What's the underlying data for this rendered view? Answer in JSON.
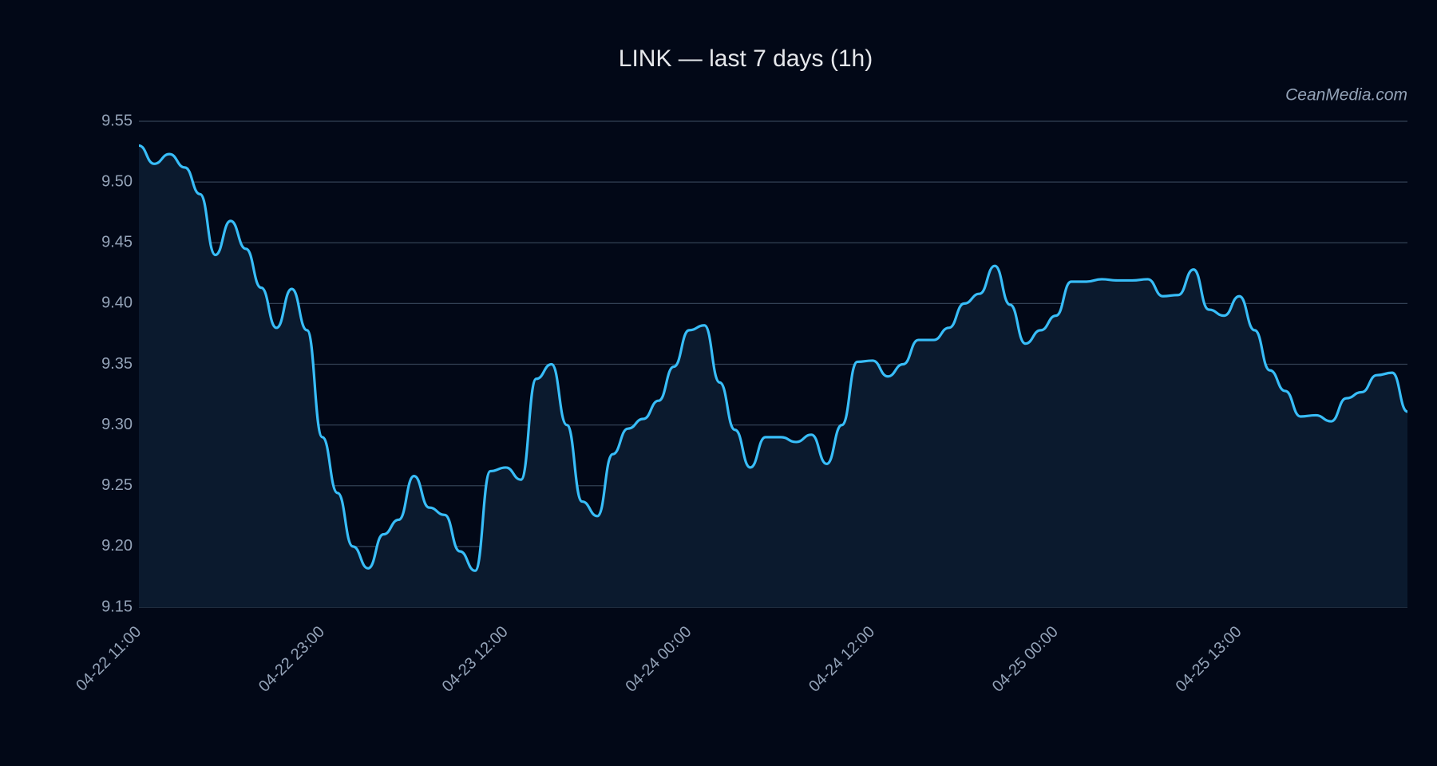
{
  "chart_data": {
    "type": "line",
    "title": "LINK — last 7 days (1h)",
    "watermark": "CeanMedia.com",
    "categories": [
      "04-22 11:00",
      null,
      null,
      null,
      null,
      null,
      null,
      null,
      null,
      null,
      null,
      null,
      "04-22 23:00",
      null,
      null,
      null,
      null,
      null,
      null,
      null,
      null,
      null,
      null,
      null,
      "04-23 12:00",
      null,
      null,
      null,
      null,
      null,
      null,
      null,
      null,
      null,
      null,
      null,
      "04-24 00:00",
      null,
      null,
      null,
      null,
      null,
      null,
      null,
      null,
      null,
      null,
      null,
      "04-24 12:00",
      null,
      null,
      null,
      null,
      null,
      null,
      null,
      null,
      null,
      null,
      null,
      "04-25 00:00",
      null,
      null,
      null,
      null,
      null,
      null,
      null,
      null,
      null,
      null,
      null,
      "04-25 13:00",
      null,
      null,
      null,
      null,
      null,
      null,
      null,
      null,
      null,
      null,
      null
    ],
    "series": [
      {
        "name": "LINK",
        "color": "#38bdf8",
        "values": [
          9.53,
          9.515,
          9.523,
          9.512,
          9.49,
          9.44,
          9.468,
          9.445,
          9.413,
          9.38,
          9.412,
          9.378,
          9.29,
          9.244,
          9.2,
          9.182,
          9.21,
          9.222,
          9.258,
          9.232,
          9.226,
          9.196,
          9.18,
          9.262,
          9.265,
          9.255,
          9.338,
          9.35,
          9.3,
          9.237,
          9.225,
          9.276,
          9.297,
          9.305,
          9.32,
          9.348,
          9.378,
          9.382,
          9.335,
          9.296,
          9.265,
          9.29,
          9.29,
          9.286,
          9.292,
          9.268,
          9.3,
          9.352,
          9.353,
          9.34,
          9.35,
          9.37,
          9.37,
          9.38,
          9.4,
          9.408,
          9.431,
          9.399,
          9.367,
          9.378,
          9.39,
          9.418,
          9.418,
          9.42,
          9.419,
          9.419,
          9.42,
          9.406,
          9.407,
          9.428,
          9.395,
          9.39,
          9.406,
          9.378,
          9.345,
          9.328,
          9.307,
          9.308,
          9.303,
          9.322,
          9.327,
          9.341,
          9.343,
          9.311
        ]
      }
    ],
    "ylim": [
      9.15,
      9.55
    ],
    "yticks": [
      {
        "value": 9.15,
        "label": "9.15"
      },
      {
        "value": 9.2,
        "label": "9.20"
      },
      {
        "value": 9.25,
        "label": "9.25"
      },
      {
        "value": 9.3,
        "label": "9.30"
      },
      {
        "value": 9.35,
        "label": "9.35"
      },
      {
        "value": 9.4,
        "label": "9.40"
      },
      {
        "value": 9.45,
        "label": "9.45"
      },
      {
        "value": 9.5,
        "label": "9.50"
      },
      {
        "value": 9.55,
        "label": "9.55"
      }
    ],
    "grid": true,
    "area": true
  }
}
